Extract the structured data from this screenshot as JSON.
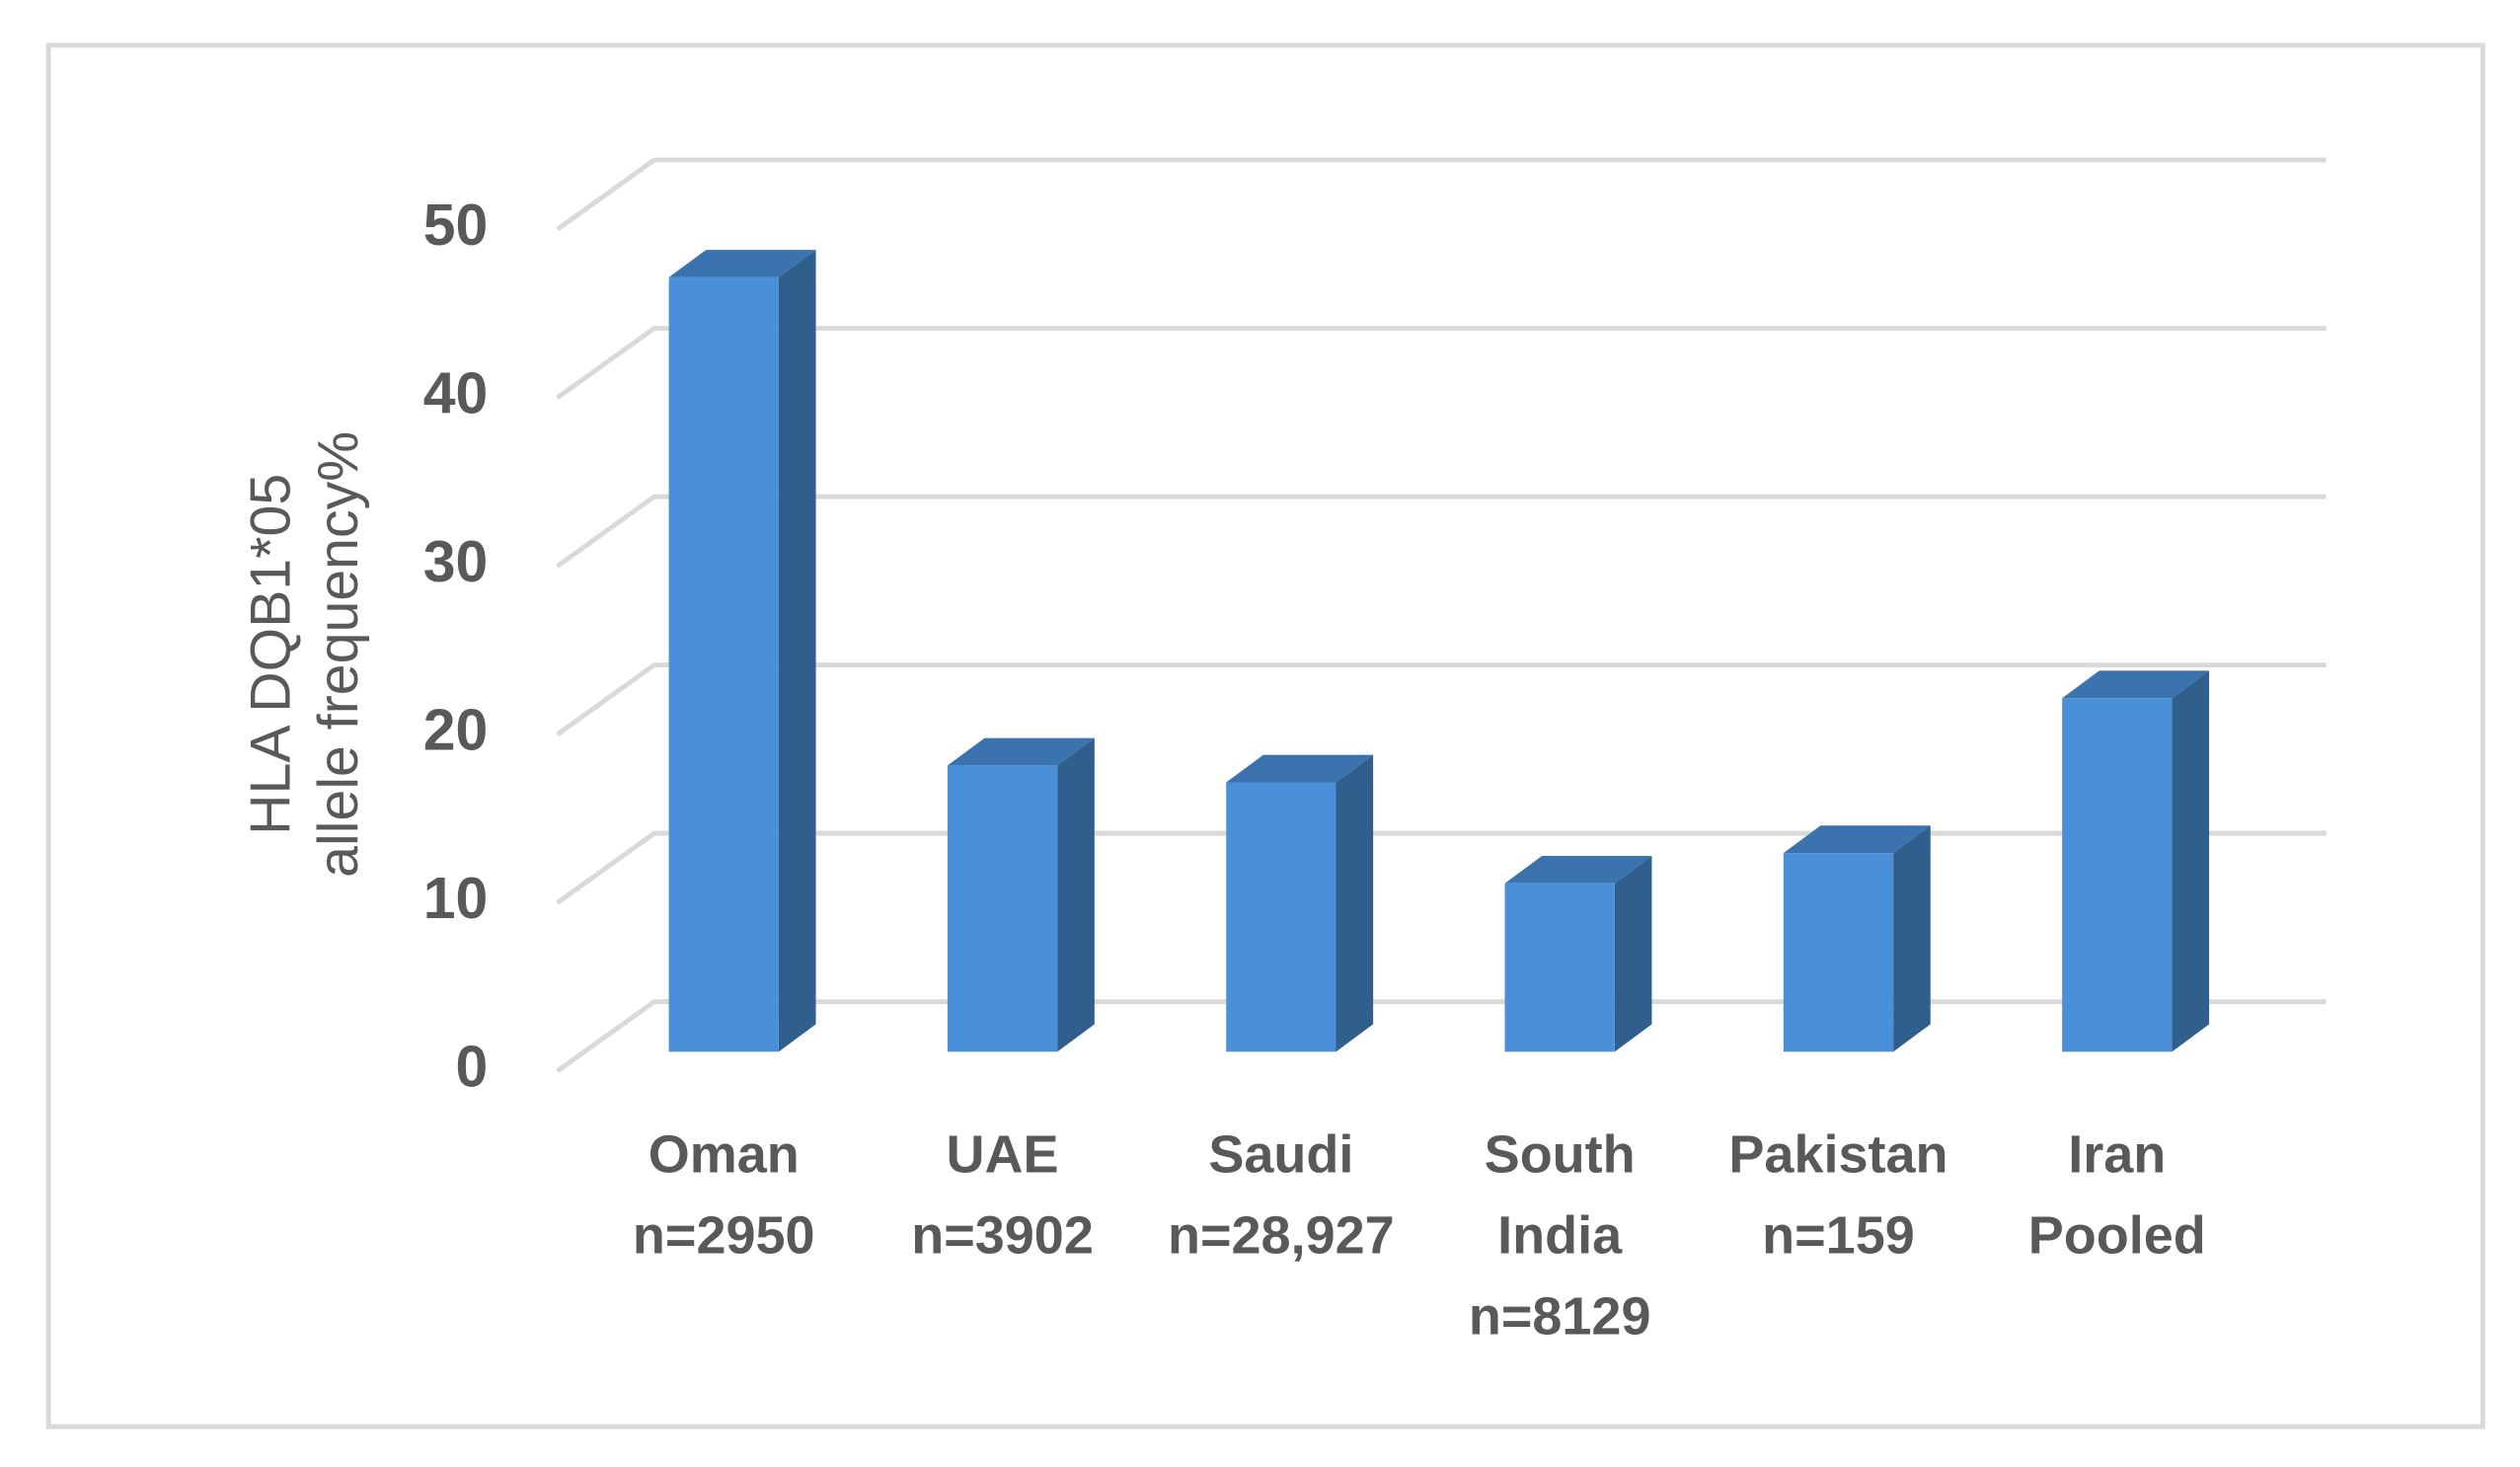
{
  "chart_data": {
    "type": "bar3d",
    "y_label": [
      "HLA DQB1*05",
      "allele frequency%"
    ],
    "categories": [
      [
        "Oman",
        "n=2950"
      ],
      [
        "UAE",
        "n=3902"
      ],
      [
        "Saudi",
        "n=28,927"
      ],
      [
        "South",
        "India",
        "n=8129"
      ],
      [
        "Pakistan",
        "n=159"
      ],
      [
        "Iran",
        "Pooled"
      ]
    ],
    "values": [
      46,
      17,
      16,
      10,
      11.8,
      21
    ],
    "color": "#4a90d9",
    "ylim": [
      0,
      50
    ],
    "yticks": [
      0,
      10,
      20,
      30,
      40,
      50
    ],
    "grid": true
  }
}
